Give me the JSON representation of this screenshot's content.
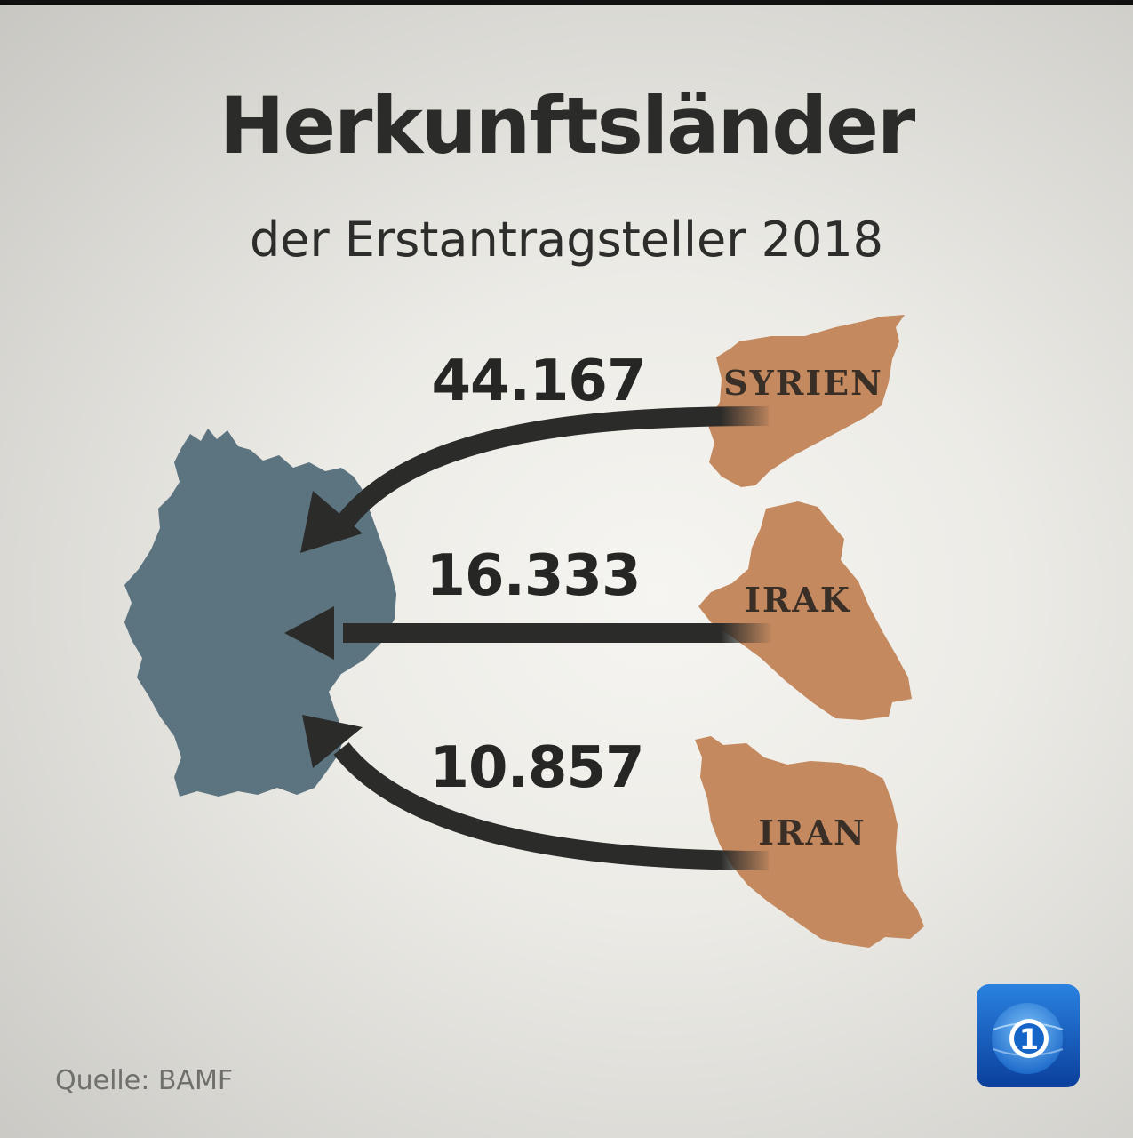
{
  "title": "Herkunftsländer",
  "subtitle": "der Erstantragsteller 2018",
  "flows": [
    {
      "country": "SYRIEN",
      "value": "44.167"
    },
    {
      "country": "IRAK",
      "value": "16.333"
    },
    {
      "country": "IRAN",
      "value": "10.857"
    }
  ],
  "source": "Quelle: BAMF",
  "colors": {
    "germany": "#5c7380",
    "origin_country": "#c4895f",
    "arrow": "#2b2b29",
    "logo_blue": "#1565c8"
  },
  "logo": {
    "icon": "tagesschau-1-logo",
    "mark": "1"
  }
}
